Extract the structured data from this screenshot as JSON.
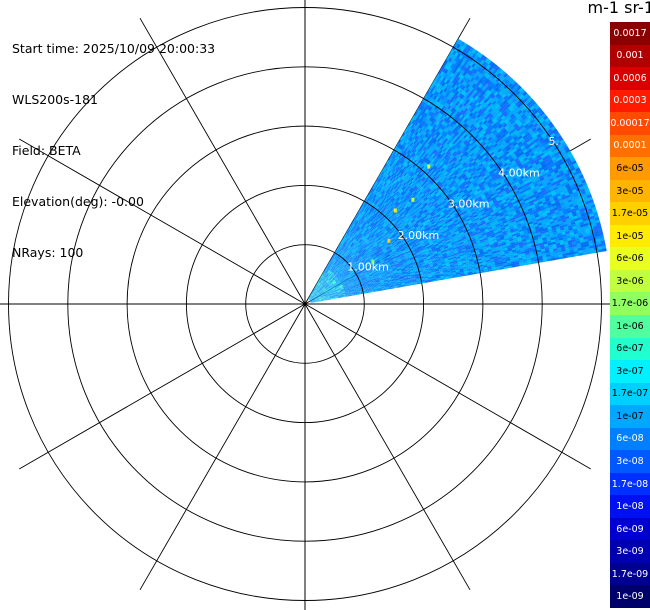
{
  "header": {
    "start_time": "Start time: 2025/10/09 20:00:33",
    "instrument": "WLS200s-181",
    "field": "Field: BETA",
    "elevation": "Elevation(deg): -0.00",
    "nrays": "NRays: 100"
  },
  "colorbar": {
    "title": "m-1 sr-1",
    "labels": [
      "0.0017",
      "0.001",
      "0.0006",
      "0.0003",
      "0.00017",
      "0.0001",
      "6e-05",
      "3e-05",
      "1.7e-05",
      "1e-05",
      "6e-06",
      "3e-06",
      "1.7e-06",
      "1e-06",
      "6e-07",
      "3e-07",
      "1.7e-07",
      "1e-07",
      "6e-08",
      "3e-08",
      "1.7e-08",
      "1e-08",
      "6e-09",
      "3e-09",
      "1.7e-09",
      "1e-09"
    ],
    "colors": [
      "#8b0000",
      "#b00000",
      "#d80000",
      "#ff1a00",
      "#ff4a00",
      "#ff7000",
      "#ff9a00",
      "#ffb400",
      "#ffd000",
      "#ffec00",
      "#e8ff20",
      "#c0ff40",
      "#90ff60",
      "#50ffa0",
      "#20ffd0",
      "#00f0ff",
      "#00d0ff",
      "#00a8ff",
      "#0080ff",
      "#0058ff",
      "#0030ff",
      "#0010f0",
      "#0000d0",
      "#0000b0",
      "#000090",
      "#00006a"
    ]
  },
  "chart_data": {
    "type": "heatmap",
    "projection": "polar-ppi",
    "field": "BETA",
    "units": "m-1 sr-1",
    "range_rings_km": [
      1,
      2,
      3,
      4,
      5
    ],
    "range_ring_labels": [
      "1.00km",
      "2.00km",
      "3.00km",
      "4.00km",
      "5."
    ],
    "max_range_km": 5.0,
    "azimuth_spokes_deg": [
      0,
      30,
      60,
      90,
      120,
      150,
      180,
      210,
      240,
      270,
      300,
      330
    ],
    "sector_azimuth_deg": [
      30,
      80
    ],
    "nrays": 100,
    "dominant_value": "1e-07",
    "value_range": [
      "6e-08",
      "1.7e-06"
    ],
    "scale": "log"
  }
}
